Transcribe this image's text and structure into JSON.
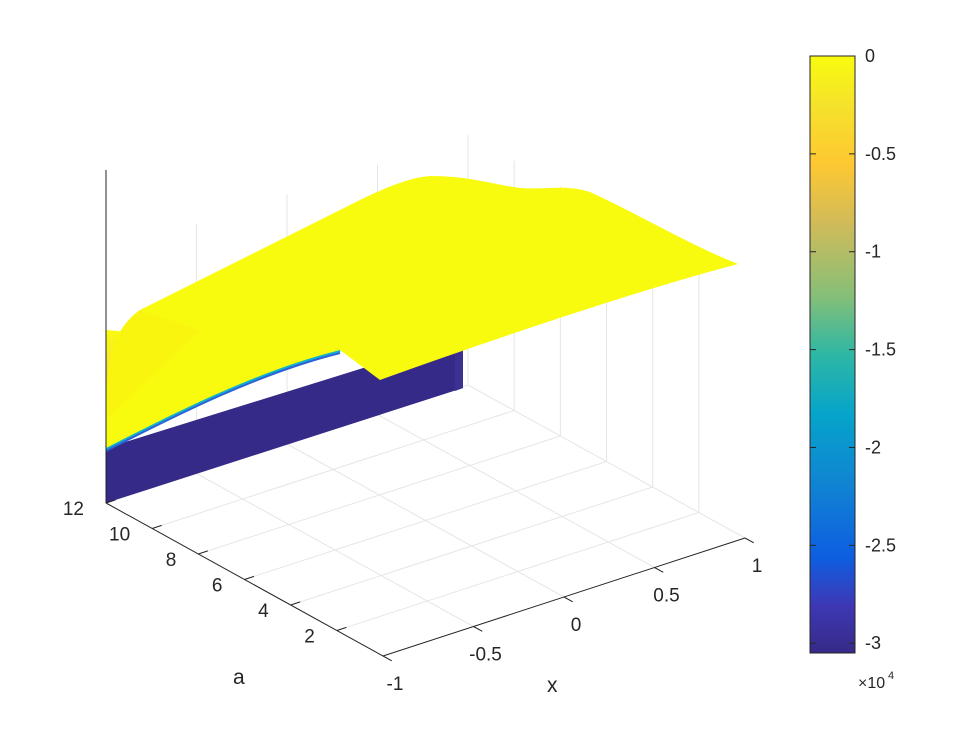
{
  "chart_data": {
    "type": "surface",
    "x_axis": {
      "label": "x",
      "ticks": [
        -1,
        -0.5,
        0,
        0.5,
        1
      ],
      "tick_labels": [
        "-1",
        "-0.5",
        "0",
        "0.5",
        "1"
      ],
      "range": [
        -1,
        1
      ]
    },
    "a_axis": {
      "label": "a",
      "ticks": [
        2,
        4,
        6,
        8,
        10,
        12
      ],
      "tick_labels": [
        "2",
        "4",
        "6",
        "8",
        "10",
        "12"
      ],
      "range": [
        0,
        12
      ]
    },
    "z_range": [
      -30000,
      0
    ],
    "grid": true,
    "colorbar": {
      "ticks": [
        0,
        -0.5,
        -1,
        -1.5,
        -2,
        -2.5,
        -3
      ],
      "tick_labels": [
        "0",
        "-0.5",
        "-1",
        "-1.5",
        "-2",
        "-2.5",
        "-3"
      ],
      "multiplier_base": "×10",
      "multiplier_exp": "4",
      "colormap": [
        "#3e26a8",
        "#4250e0",
        "#2e87f7",
        "#14b1d8",
        "#2bc1a1",
        "#82c96b",
        "#ccbd44",
        "#fcc438",
        "#f9fb15"
      ]
    },
    "surface": {
      "description_values": {
        "top_edge_z_at_x_minus1": 0,
        "min_z": -30000
      }
    }
  }
}
